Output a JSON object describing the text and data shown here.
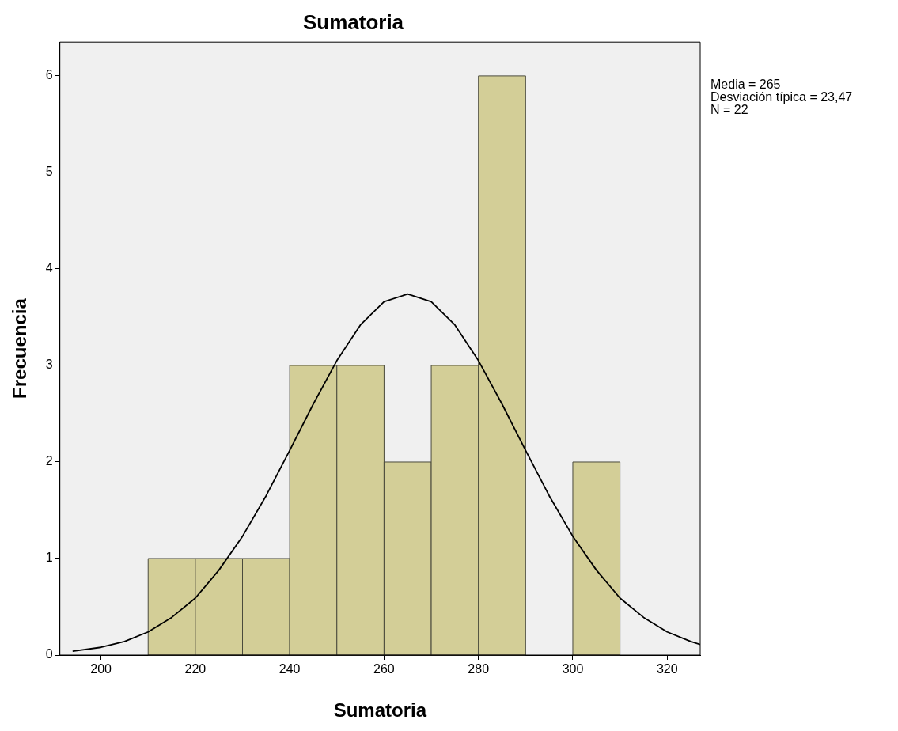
{
  "chart_data": {
    "type": "histogram",
    "title": "Sumatoria",
    "xlabel": "Sumatoria",
    "ylabel": "Frecuencia",
    "bins": [
      210,
      220,
      230,
      240,
      250,
      260,
      270,
      280,
      290,
      300,
      310
    ],
    "values": [
      1,
      1,
      1,
      3,
      3,
      2,
      3,
      6,
      0,
      2
    ],
    "color": "#d3ce97",
    "series": [
      {
        "type": "line",
        "color": "#000000",
        "x": [
          194,
          200,
          205,
          210,
          215,
          220,
          225,
          230,
          235,
          240,
          245,
          250,
          255,
          260,
          265,
          270,
          275,
          280,
          285,
          290,
          295,
          300,
          305,
          310,
          315,
          320,
          325,
          327
        ],
        "values": [
          0.04,
          0.08,
          0.14,
          0.24,
          0.39,
          0.59,
          0.88,
          1.23,
          1.65,
          2.12,
          2.6,
          3.05,
          3.42,
          3.66,
          3.74,
          3.66,
          3.42,
          3.05,
          2.6,
          2.12,
          1.65,
          1.23,
          0.88,
          0.59,
          0.39,
          0.24,
          0.14,
          0.11
        ]
      }
    ],
    "xlim": [
      191.3,
      327
    ],
    "xticks": [
      200,
      220,
      240,
      260,
      280,
      300,
      320
    ],
    "ylim": [
      0,
      6.35
    ],
    "yticks": [
      0,
      1,
      2,
      3,
      4,
      5,
      6
    ],
    "grid": false,
    "legend": false,
    "marker": "none",
    "annotations": [
      "Media = 265",
      "Desviación típica = 23,47",
      "N = 22"
    ]
  }
}
